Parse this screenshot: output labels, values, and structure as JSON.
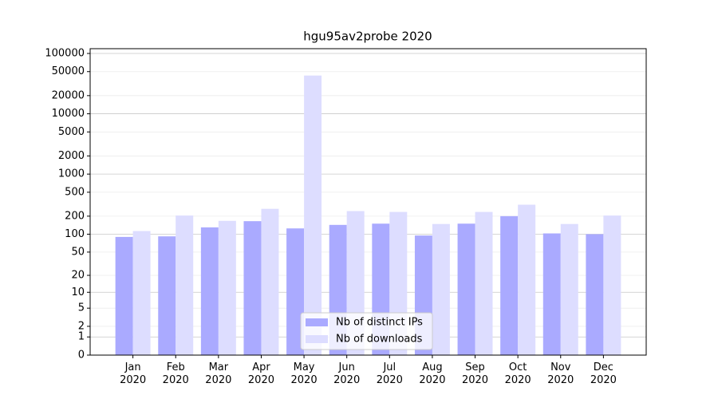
{
  "chart_data": {
    "type": "bar",
    "title": "hgu95av2probe 2020",
    "categories": [
      "Jan\n2020",
      "Feb\n2020",
      "Mar\n2020",
      "Apr\n2020",
      "May\n2020",
      "Jun\n2020",
      "Jul\n2020",
      "Aug\n2020",
      "Sep\n2020",
      "Oct\n2020",
      "Nov\n2020",
      "Dec\n2020"
    ],
    "series": [
      {
        "name": "Nb of distinct IPs",
        "color": "#aaaaff",
        "values": [
          90,
          92,
          130,
          165,
          125,
          143,
          150,
          95,
          150,
          200,
          103,
          100
        ]
      },
      {
        "name": "Nb of downloads",
        "color": "#ddddff",
        "values": [
          113,
          205,
          167,
          265,
          43000,
          243,
          235,
          148,
          235,
          310,
          148,
          205
        ]
      }
    ],
    "yscale": "log1p",
    "ylim": [
      0,
      120000
    ],
    "yticks": [
      0,
      1,
      2,
      5,
      10,
      20,
      50,
      100,
      200,
      500,
      1000,
      2000,
      5000,
      10000,
      20000,
      50000,
      100000
    ],
    "grid": true,
    "legend": "lower center"
  }
}
